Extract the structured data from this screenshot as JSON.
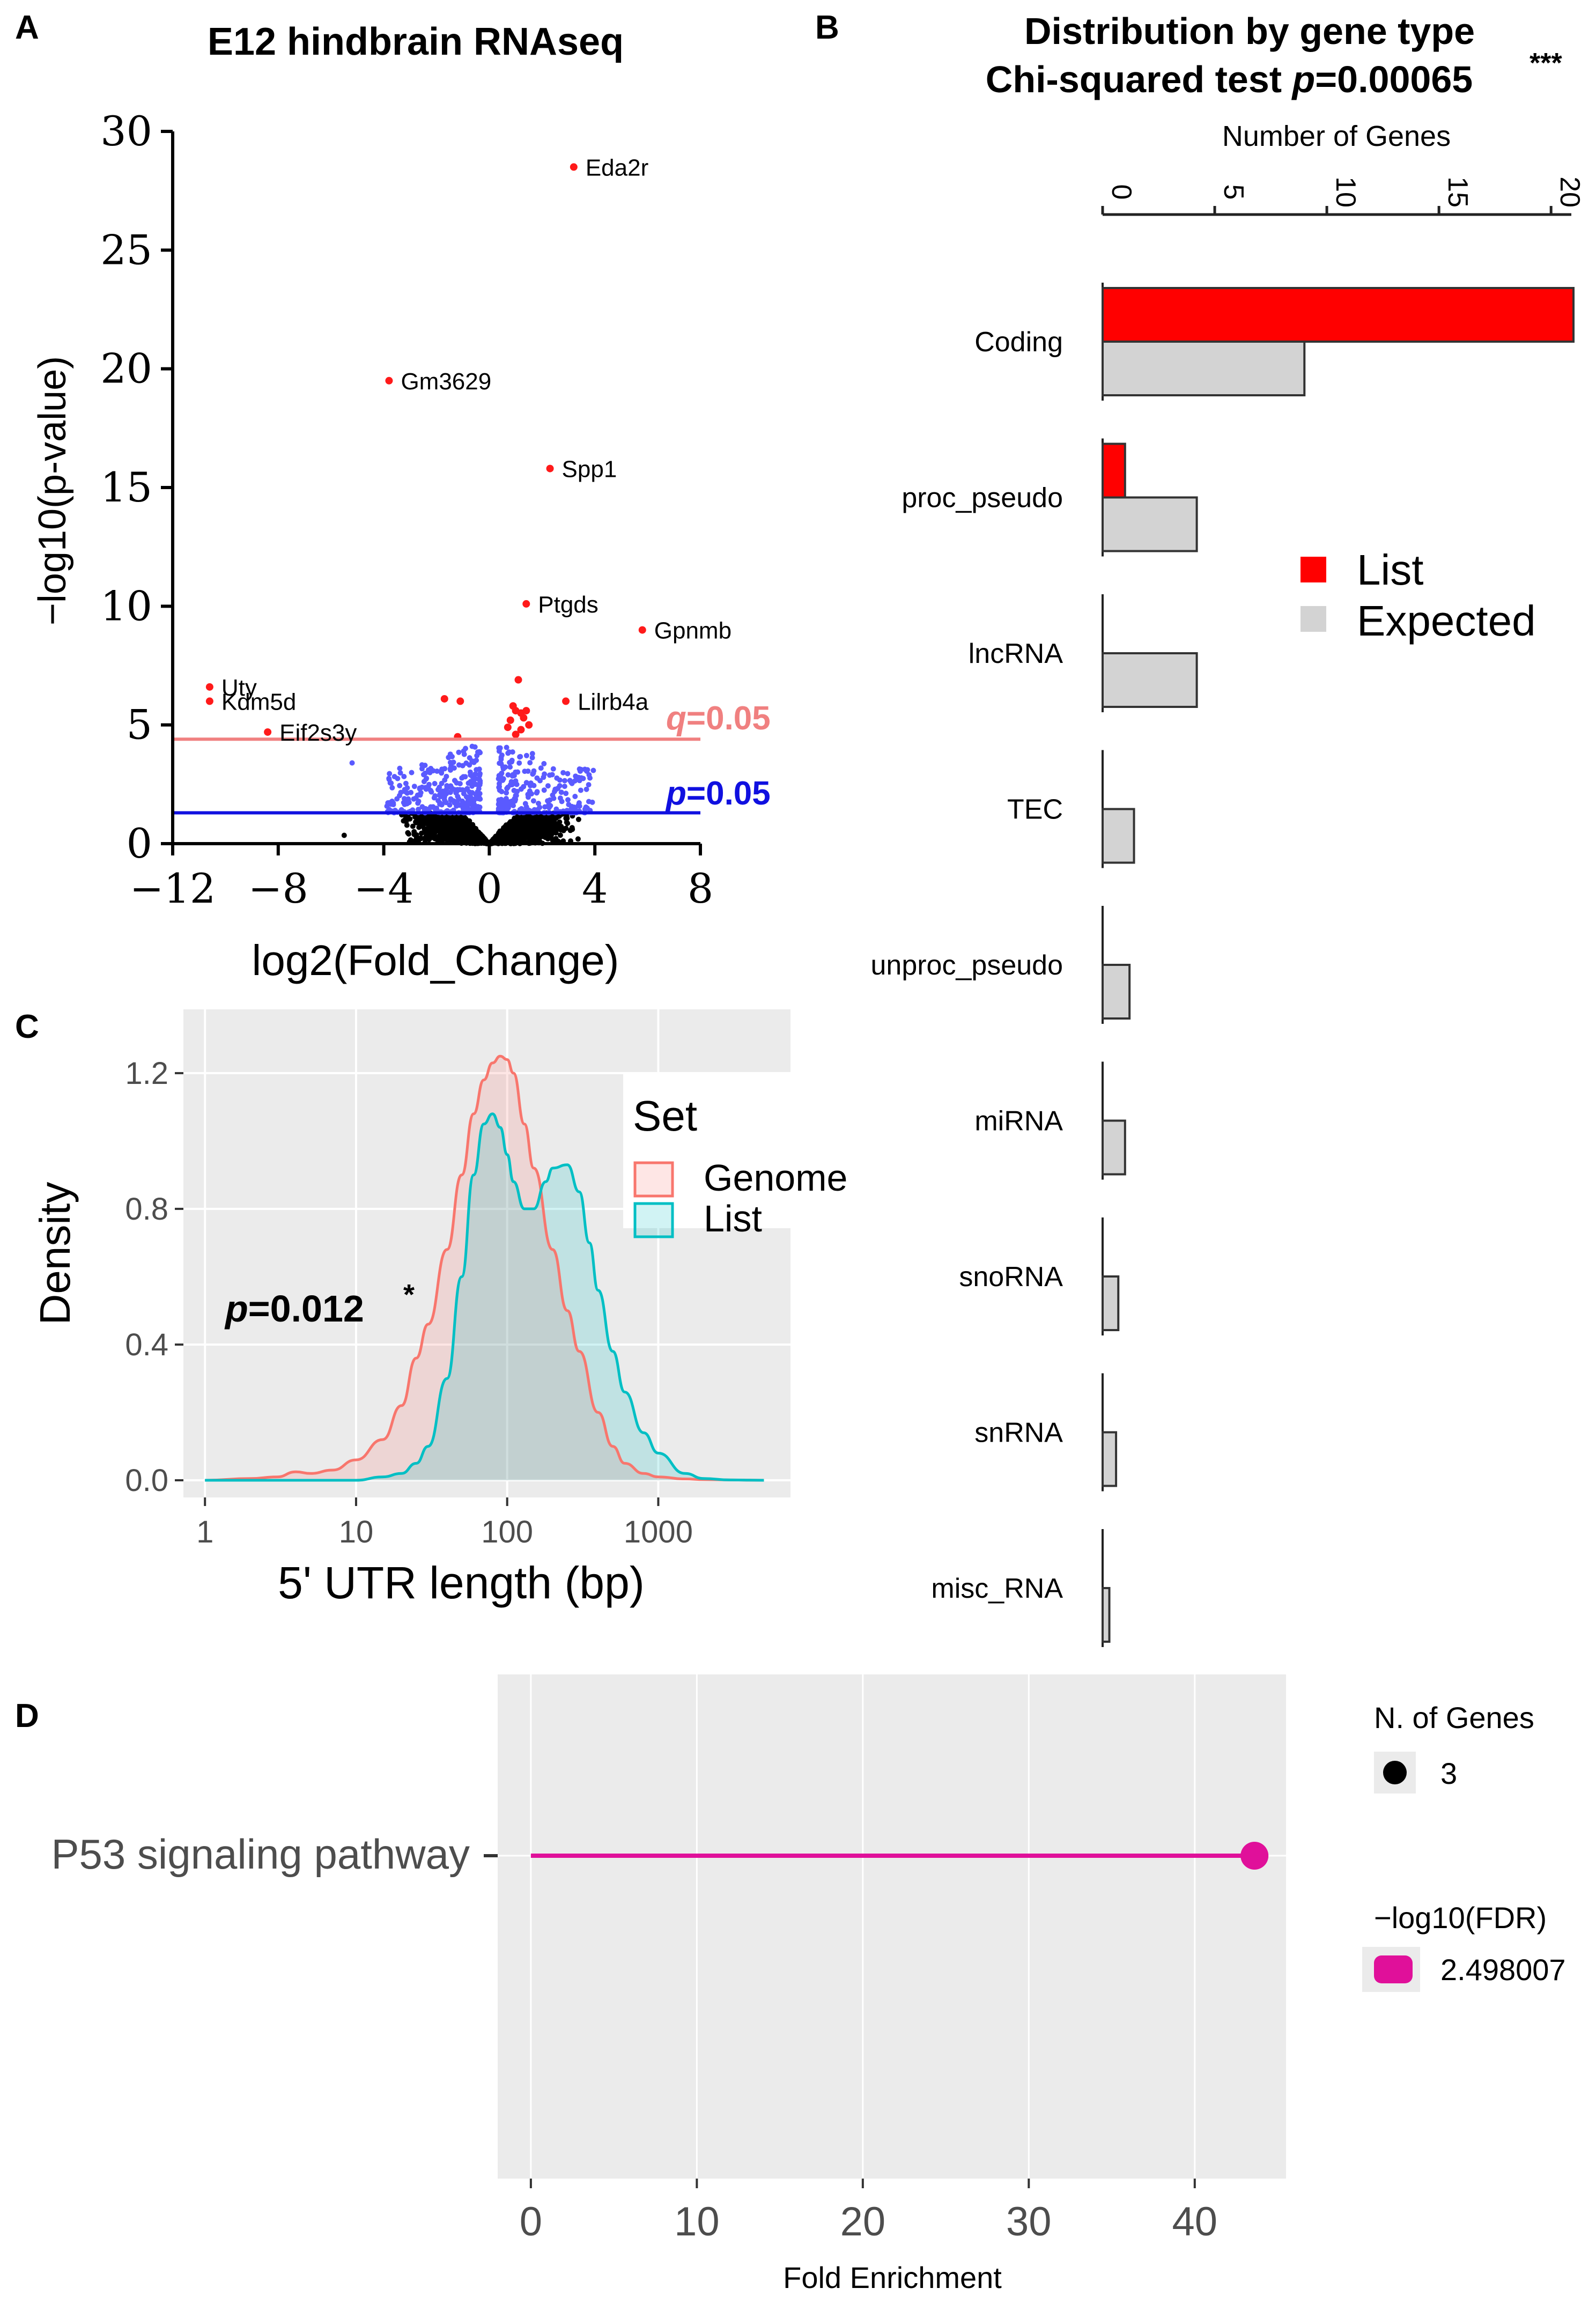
{
  "colors": {
    "list_red": "#ff0000",
    "expected_gray": "#d3d3d3",
    "bar_outline": "#333333",
    "sig_red": "#ff1a1a",
    "sig_blue": "#5a5aff",
    "nonsig_black": "#000000",
    "q_line": "#f08080",
    "p_line": "#1010e0",
    "genome_line": "#f8766d",
    "genome_fill": "#f8766d",
    "list_line": "#00bfc4",
    "list_fill": "#00bfc4",
    "panel_bg": "#ebebeb",
    "lollipop": "#e0109a"
  },
  "chart_data": [
    {
      "panel": "A",
      "type": "scatter",
      "title": "E12 hindbrain RNAseq",
      "xlabel": "log2(Fold_Change)",
      "ylabel": "−log10(p-value)",
      "xlim": [
        -12,
        8
      ],
      "ylim": [
        0,
        30
      ],
      "x_ticks": [
        -12,
        -8,
        -4,
        0,
        4,
        8
      ],
      "x_tick_labels": [
        "−12",
        "−8",
        "−4",
        "0",
        "4",
        "8"
      ],
      "y_ticks": [
        0,
        5,
        10,
        15,
        20,
        25,
        30
      ],
      "y_tick_labels": [
        "0",
        "5",
        "10",
        "15",
        "20",
        "25",
        "30"
      ],
      "thresholds": [
        {
          "name": "q",
          "label_sym": "q",
          "label_val": "=0.05",
          "y": 4.4
        },
        {
          "name": "p",
          "label_sym": "p",
          "label_val": "=0.05",
          "y": 1.3
        }
      ],
      "labeled_genes": [
        {
          "gene": "Eda2r",
          "x": 3.2,
          "y": 28.5
        },
        {
          "gene": "Gm3629",
          "x": -3.8,
          "y": 19.5
        },
        {
          "gene": "Spp1",
          "x": 2.3,
          "y": 15.8
        },
        {
          "gene": "Ptgds",
          "x": 1.4,
          "y": 10.1
        },
        {
          "gene": "Gpnmb",
          "x": 5.8,
          "y": 9.0
        },
        {
          "gene": "Uty",
          "x": -10.6,
          "y": 6.6
        },
        {
          "gene": "Kdm5d",
          "x": -10.6,
          "y": 6.0
        },
        {
          "gene": "Lilrb4a",
          "x": 2.9,
          "y": 6.0
        },
        {
          "gene": "Eif2s3y",
          "x": -8.4,
          "y": 4.7
        }
      ],
      "other_sig_points": [
        {
          "x": -1.7,
          "y": 6.1
        },
        {
          "x": -1.1,
          "y": 6.0
        },
        {
          "x": 1.1,
          "y": 6.9
        },
        {
          "x": 0.9,
          "y": 5.8
        },
        {
          "x": 1.0,
          "y": 5.6
        },
        {
          "x": 1.2,
          "y": 5.5
        },
        {
          "x": 1.4,
          "y": 5.6
        },
        {
          "x": 0.8,
          "y": 5.2
        },
        {
          "x": 1.3,
          "y": 5.3
        },
        {
          "x": 1.5,
          "y": 5.0
        },
        {
          "x": 0.7,
          "y": 4.9
        },
        {
          "x": 1.2,
          "y": 4.8
        },
        {
          "x": -1.2,
          "y": 4.5
        },
        {
          "x": 1.0,
          "y": 4.6
        }
      ]
    },
    {
      "panel": "B",
      "type": "bar",
      "title_line1": "Distribution by gene type",
      "title_line2_prefix": "Chi-squared test ",
      "title_line2_p": "p",
      "title_line2_value": "=0.00065",
      "title_stars": "***",
      "axis_label": "Number of Genes",
      "xlim": [
        0,
        21
      ],
      "x_ticks": [
        0,
        5,
        10,
        15,
        20
      ],
      "x_tick_labels": [
        "0",
        "5",
        "10",
        "15",
        "20"
      ],
      "categories": [
        "Coding",
        "proc_pseudo",
        "lncRNA",
        "TEC",
        "unproc_pseudo",
        "miRNA",
        "snoRNA",
        "snRNA",
        "misc_RNA"
      ],
      "series": [
        {
          "name": "List",
          "values": [
            21,
            1,
            0,
            0,
            0,
            0,
            0,
            0,
            0
          ]
        },
        {
          "name": "Expected",
          "values": [
            9,
            4.2,
            4.2,
            1.4,
            1.2,
            1.0,
            0.7,
            0.6,
            0.3
          ]
        }
      ],
      "legend_position": "right"
    },
    {
      "panel": "C",
      "type": "area",
      "xlabel": "5' UTR length (bp)",
      "ylabel": "Density",
      "x_scale": "log10",
      "xlim": [
        1,
        5000
      ],
      "ylim": [
        0,
        1.32
      ],
      "x_ticks": [
        1,
        10,
        100,
        1000
      ],
      "x_tick_labels": [
        "1",
        "10",
        "100",
        "1000"
      ],
      "y_ticks": [
        0,
        0.4,
        0.8,
        1.2
      ],
      "y_tick_labels": [
        "0.0",
        "0.4",
        "0.8",
        "1.2"
      ],
      "legend_title": "Set",
      "legend_position": "top-right",
      "annotation_p": "p",
      "annotation_value": "=0.012",
      "annotation_stars": "*",
      "series": [
        {
          "name": "Genome",
          "x": [
            1,
            2,
            3,
            4,
            5,
            7,
            10,
            15,
            20,
            25,
            30,
            40,
            50,
            60,
            70,
            80,
            90,
            100,
            110,
            130,
            150,
            200,
            250,
            300,
            400,
            500,
            600,
            800,
            1000,
            1500,
            2000,
            3000,
            5000
          ],
          "y": [
            0,
            0.005,
            0.01,
            0.025,
            0.02,
            0.03,
            0.06,
            0.12,
            0.22,
            0.36,
            0.46,
            0.68,
            0.9,
            1.08,
            1.18,
            1.23,
            1.25,
            1.24,
            1.2,
            1.05,
            0.92,
            0.68,
            0.5,
            0.38,
            0.2,
            0.1,
            0.05,
            0.02,
            0.01,
            0.004,
            0.002,
            0.001,
            0
          ]
        },
        {
          "name": "List",
          "x": [
            1,
            5,
            10,
            15,
            20,
            25,
            30,
            40,
            50,
            60,
            70,
            80,
            90,
            100,
            110,
            130,
            150,
            180,
            200,
            250,
            300,
            350,
            400,
            500,
            600,
            800,
            1000,
            1500,
            2000,
            3000,
            5000
          ],
          "y": [
            0,
            0,
            0,
            0.01,
            0.02,
            0.05,
            0.1,
            0.3,
            0.6,
            0.9,
            1.05,
            1.08,
            1.04,
            0.96,
            0.88,
            0.8,
            0.8,
            0.88,
            0.92,
            0.93,
            0.85,
            0.7,
            0.56,
            0.38,
            0.26,
            0.14,
            0.08,
            0.02,
            0.005,
            0.001,
            0
          ]
        }
      ]
    },
    {
      "panel": "D",
      "type": "scatter",
      "xlabel": "Fold Enrichment",
      "xlim": [
        -2,
        45.5
      ],
      "x_ticks": [
        0,
        10,
        20,
        30,
        40
      ],
      "x_tick_labels": [
        "0",
        "10",
        "20",
        "30",
        "40"
      ],
      "categories": [
        "P53 signaling pathway"
      ],
      "values": [
        43.6
      ],
      "n_genes": [
        3
      ],
      "neg_log10_fdr": [
        2.498007
      ],
      "size_legend_title": "N. of Genes",
      "size_legend_value": "3",
      "color_legend_title": "−log10(FDR)",
      "color_legend_value": "2.498007"
    }
  ],
  "panel_labels": {
    "a": "A",
    "b": "B",
    "c": "C",
    "d": "D"
  }
}
